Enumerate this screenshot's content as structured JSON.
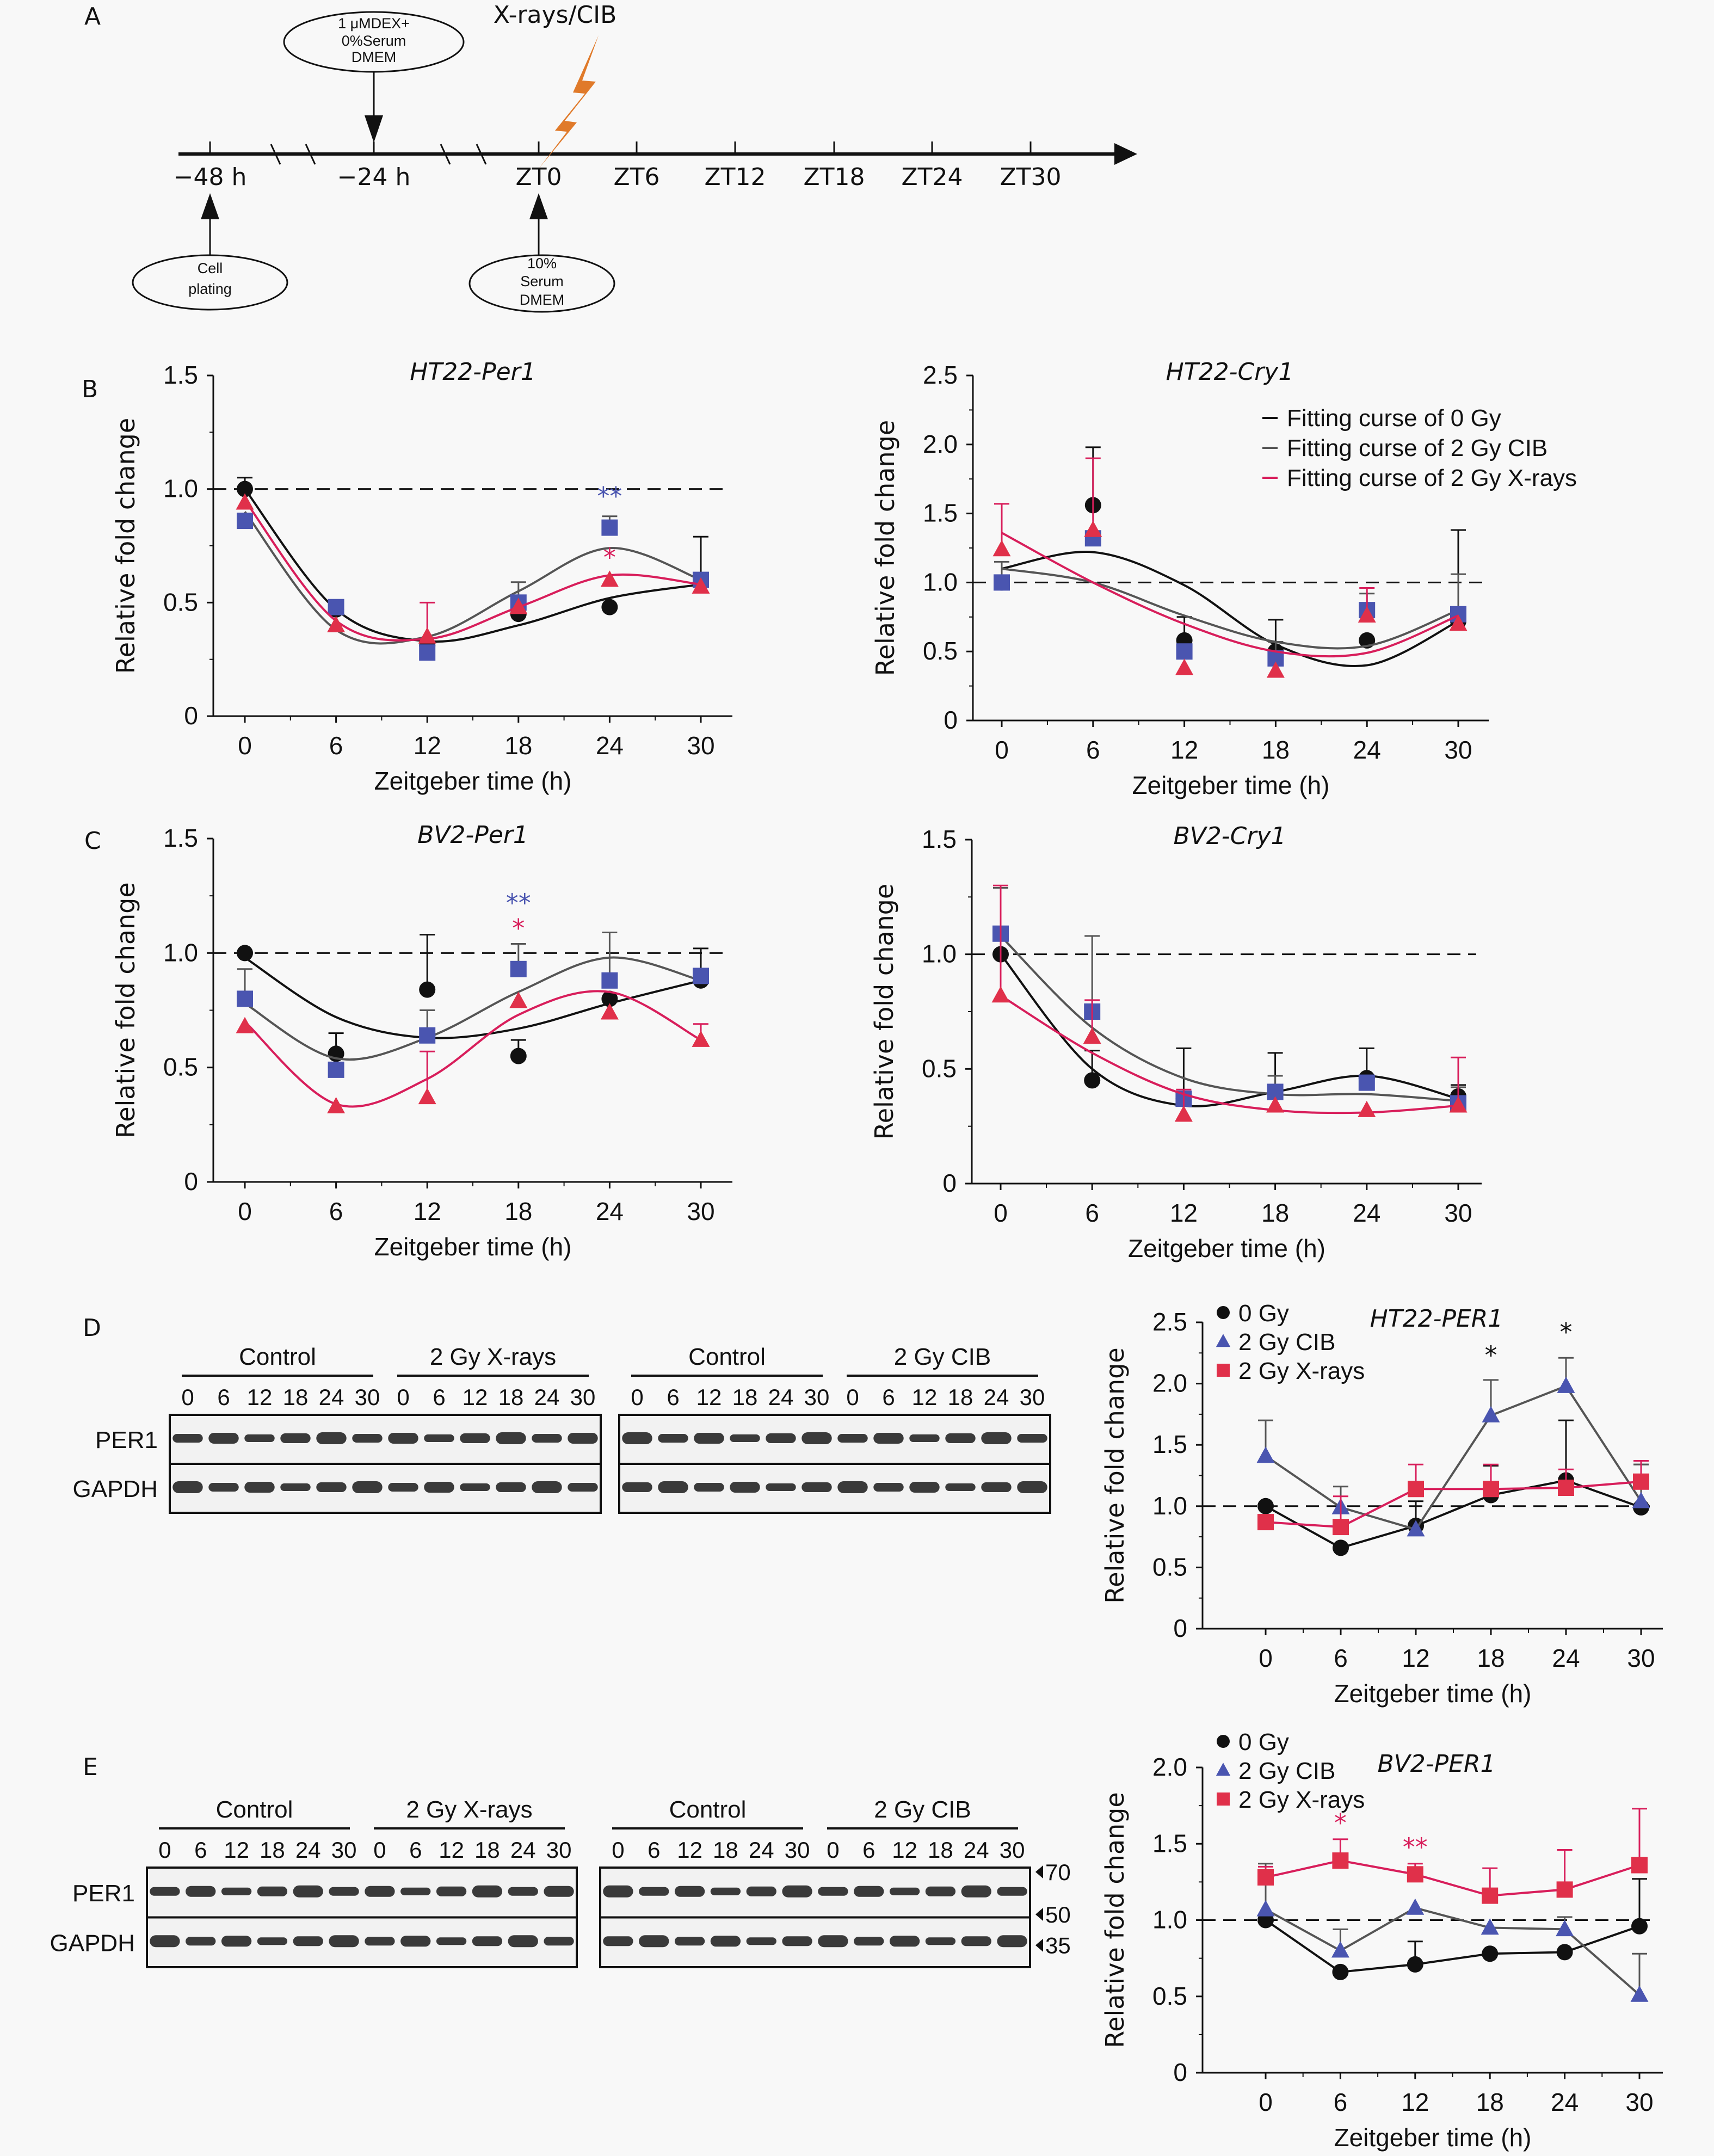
{
  "panel_labels": {
    "A": "A",
    "B": "B",
    "C": "C",
    "D": "D",
    "E": "E"
  },
  "timeline": {
    "irradiation_label": "X-rays/CIB",
    "ticks": [
      "−48 h",
      "−24 h",
      "ZT0",
      "ZT6",
      "ZT12",
      "ZT18",
      "ZT24",
      "ZT30"
    ],
    "callouts": {
      "dex": [
        "1 μMDEX+",
        "0%Serum",
        "DMEM"
      ],
      "plating": [
        "Cell",
        "plating"
      ],
      "serum": [
        "10%",
        "Serum",
        "DMEM"
      ]
    },
    "bolt_color": "#e07a2a"
  },
  "colors": {
    "gy0": "#111111",
    "cib": "#4a55b0",
    "cib_line": "#555555",
    "xray": "#e0304a",
    "xray_line": "#d81e5b"
  },
  "chart_data": [
    {
      "id": "B-left",
      "type": "scatter",
      "title": "HT22-Per1",
      "xlabel": "Zeitgeber time (h)",
      "ylabel": "Relative fold change",
      "x": [
        0,
        6,
        12,
        18,
        24,
        30
      ],
      "xticks": [
        "0",
        "6",
        "12",
        "18",
        "24",
        "30"
      ],
      "yticks": [
        "0",
        "0.5",
        "1.0",
        "1.5"
      ],
      "ylim": [
        0,
        1.5
      ],
      "reference_line": 1.0,
      "series": [
        {
          "name": "0 Gy",
          "marker": "circle",
          "values": [
            1.0,
            0.47,
            0.31,
            0.45,
            0.48,
            0.59
          ],
          "err": [
            0.05,
            0,
            0,
            0,
            0,
            0.2
          ],
          "fit": [
            1.0,
            0.47,
            0.33,
            0.4,
            0.52,
            0.58
          ]
        },
        {
          "name": "2 Gy CIB",
          "marker": "square",
          "values": [
            0.86,
            0.48,
            0.28,
            0.5,
            0.83,
            0.6
          ],
          "err": [
            0,
            0,
            0,
            0.09,
            0.05,
            0
          ],
          "fit": [
            0.9,
            0.38,
            0.35,
            0.55,
            0.74,
            0.6
          ]
        },
        {
          "name": "2 Gy X-rays",
          "marker": "triangle",
          "values": [
            0.94,
            0.4,
            0.35,
            0.48,
            0.6,
            0.57
          ],
          "err": [
            0,
            0,
            0.15,
            0,
            0,
            0
          ],
          "fit": [
            0.95,
            0.42,
            0.34,
            0.48,
            0.62,
            0.58
          ]
        }
      ],
      "annotations": [
        {
          "x": 24,
          "text": "**",
          "color": "#4a55b0",
          "y": 0.93
        },
        {
          "x": 24,
          "text": "*",
          "color": "#d81e5b",
          "y": 0.66
        }
      ]
    },
    {
      "id": "B-right",
      "type": "scatter",
      "title": "HT22-Cry1",
      "xlabel": "Zeitgeber time (h)",
      "ylabel": "Relative fold change",
      "x": [
        0,
        6,
        12,
        18,
        24,
        30
      ],
      "xticks": [
        "0",
        "6",
        "12",
        "18",
        "24",
        "30"
      ],
      "yticks": [
        "0",
        "0.5",
        "1.0",
        "1.5",
        "2.0",
        "2.5"
      ],
      "ylim": [
        0,
        2.5
      ],
      "reference_line": 1.0,
      "legend": [
        "Fitting curse of 0 Gy",
        "Fitting curse of 2 Gy CIB",
        "Fitting curse of 2 Gy X-rays"
      ],
      "legend_position": "top-right",
      "series": [
        {
          "name": "0 Gy",
          "marker": "circle",
          "values": [
            1.0,
            1.56,
            0.58,
            0.5,
            0.58,
            0.72
          ],
          "err": [
            0,
            0.42,
            0.17,
            0.23,
            0,
            0.66
          ],
          "fit": [
            1.1,
            1.22,
            0.98,
            0.55,
            0.4,
            0.72
          ]
        },
        {
          "name": "2 Gy CIB",
          "marker": "square",
          "values": [
            1.0,
            1.32,
            0.5,
            0.45,
            0.8,
            0.77
          ],
          "err": [
            0.15,
            0,
            0,
            0.12,
            0.12,
            0.29
          ],
          "fit": [
            1.1,
            1.0,
            0.76,
            0.57,
            0.54,
            0.8
          ]
        },
        {
          "name": "2 Gy X-rays",
          "marker": "triangle",
          "values": [
            1.24,
            1.38,
            0.38,
            0.36,
            0.76,
            0.7
          ],
          "err": [
            0.33,
            0.52,
            0,
            0,
            0.2,
            0
          ],
          "fit": [
            1.36,
            1.0,
            0.7,
            0.5,
            0.49,
            0.76
          ]
        }
      ]
    },
    {
      "id": "C-left",
      "type": "scatter",
      "title": "BV2-Per1",
      "xlabel": "Zeitgeber time (h)",
      "ylabel": "Relative fold change",
      "x": [
        0,
        6,
        12,
        18,
        24,
        30
      ],
      "xticks": [
        "0",
        "6",
        "12",
        "18",
        "24",
        "30"
      ],
      "yticks": [
        "0",
        "0.5",
        "1.0",
        "1.5"
      ],
      "ylim": [
        0,
        1.5
      ],
      "reference_line": 1.0,
      "series": [
        {
          "name": "0 Gy",
          "marker": "circle",
          "values": [
            1.0,
            0.56,
            0.84,
            0.55,
            0.8,
            0.88
          ],
          "err": [
            0,
            0.09,
            0.24,
            0.07,
            0,
            0.14
          ],
          "fit": [
            0.98,
            0.72,
            0.63,
            0.67,
            0.78,
            0.88
          ]
        },
        {
          "name": "2 Gy CIB",
          "marker": "square",
          "values": [
            0.8,
            0.49,
            0.64,
            0.93,
            0.88,
            0.9
          ],
          "err": [
            0.13,
            0,
            0.11,
            0.11,
            0.21,
            0
          ],
          "fit": [
            0.78,
            0.54,
            0.63,
            0.83,
            0.98,
            0.88
          ]
        },
        {
          "name": "2 Gy X-rays",
          "marker": "triangle",
          "values": [
            0.68,
            0.33,
            0.37,
            0.79,
            0.74,
            0.62
          ],
          "err": [
            0,
            0,
            0.2,
            0,
            0,
            0.07
          ],
          "fit": [
            0.7,
            0.34,
            0.45,
            0.73,
            0.83,
            0.62
          ]
        }
      ],
      "annotations": [
        {
          "x": 18,
          "text": "**",
          "color": "#4a55b0",
          "y": 1.18
        },
        {
          "x": 18,
          "text": "*",
          "color": "#d81e5b",
          "y": 1.07
        }
      ]
    },
    {
      "id": "C-right",
      "type": "scatter",
      "title": "BV2-Cry1",
      "xlabel": "Zeitgeber time (h)",
      "ylabel": "Relative fold change",
      "x": [
        0,
        6,
        12,
        18,
        24,
        30
      ],
      "xticks": [
        "0",
        "6",
        "12",
        "18",
        "24",
        "30"
      ],
      "yticks": [
        "0",
        "0.5",
        "1.0",
        "1.5"
      ],
      "ylim": [
        0,
        1.5
      ],
      "reference_line": 1.0,
      "series": [
        {
          "name": "0 Gy",
          "marker": "circle",
          "values": [
            1.0,
            0.45,
            0.37,
            0.4,
            0.46,
            0.38
          ],
          "err": [
            0,
            0.13,
            0.22,
            0.17,
            0.13,
            0.05
          ],
          "fit": [
            1.0,
            0.5,
            0.34,
            0.4,
            0.47,
            0.37
          ]
        },
        {
          "name": "2 Gy CIB",
          "marker": "square",
          "values": [
            1.09,
            0.75,
            0.37,
            0.4,
            0.44,
            0.35
          ],
          "err": [
            0.2,
            0.33,
            0,
            0.07,
            0,
            0.07
          ],
          "fit": [
            1.08,
            0.68,
            0.46,
            0.39,
            0.39,
            0.36
          ]
        },
        {
          "name": "2 Gy X-rays",
          "marker": "triangle",
          "values": [
            0.82,
            0.64,
            0.3,
            0.34,
            0.32,
            0.34
          ],
          "err": [
            0.48,
            0.16,
            0.11,
            0,
            0,
            0.21
          ],
          "fit": [
            0.82,
            0.57,
            0.39,
            0.32,
            0.31,
            0.34
          ]
        }
      ]
    },
    {
      "id": "D-right",
      "type": "line",
      "title": "HT22-PER1",
      "xlabel": "Zeitgeber time (h)",
      "ylabel": "Relative fold change",
      "x": [
        0,
        6,
        12,
        18,
        24,
        30
      ],
      "xticks": [
        "0",
        "6",
        "12",
        "18",
        "24",
        "30"
      ],
      "yticks": [
        "0",
        "0.5",
        "1.0",
        "1.5",
        "2.0",
        "2.5"
      ],
      "ylim": [
        0,
        2.5
      ],
      "xlim": [
        -5,
        32
      ],
      "reference_line": 1.0,
      "legend": [
        "0 Gy",
        "2 Gy CIB",
        "2 Gy X-rays"
      ],
      "legend_position": "top-left",
      "series": [
        {
          "name": "0 Gy",
          "marker": "circle",
          "values": [
            1.0,
            0.66,
            0.84,
            1.09,
            1.21,
            0.99
          ],
          "err": [
            0,
            0,
            0.2,
            0.24,
            0.49,
            0.35
          ]
        },
        {
          "name": "2 Gy CIB",
          "marker": "triangle",
          "values": [
            1.41,
            0.99,
            0.81,
            1.74,
            1.98,
            1.04
          ],
          "err": [
            0.29,
            0.17,
            0,
            0.29,
            0.23,
            0.3
          ]
        },
        {
          "name": "2 Gy X-rays",
          "marker": "square",
          "values": [
            0.87,
            0.83,
            1.14,
            1.14,
            1.15,
            1.2
          ],
          "err": [
            0,
            0.25,
            0.2,
            0.2,
            0.15,
            0.17
          ]
        }
      ],
      "annotations": [
        {
          "x": 18,
          "text": "*",
          "color": "#111111",
          "y": 2.16
        },
        {
          "x": 24,
          "text": "*",
          "color": "#111111",
          "y": 2.35
        }
      ]
    },
    {
      "id": "E-right",
      "type": "line",
      "title": "BV2-PER1",
      "xlabel": "Zeitgeber time (h)",
      "ylabel": "Relative fold change",
      "x": [
        0,
        6,
        12,
        18,
        24,
        30
      ],
      "xticks": [
        "0",
        "6",
        "12",
        "18",
        "24",
        "30"
      ],
      "yticks": [
        "0",
        "0.5",
        "1.0",
        "1.5",
        "2.0"
      ],
      "ylim": [
        0,
        2.0
      ],
      "xlim": [
        -5,
        32
      ],
      "reference_line": 1.0,
      "legend": [
        "0 Gy",
        "2 Gy CIB",
        "2 Gy X-rays"
      ],
      "legend_position": "top-left",
      "series": [
        {
          "name": "0 Gy",
          "marker": "circle",
          "values": [
            1.0,
            0.66,
            0.71,
            0.78,
            0.79,
            0.96
          ],
          "err": [
            0,
            0,
            0.15,
            0,
            0,
            0.31
          ]
        },
        {
          "name": "2 Gy CIB",
          "marker": "triangle",
          "values": [
            1.07,
            0.8,
            1.08,
            0.95,
            0.94,
            0.51
          ],
          "err": [
            0.3,
            0.14,
            0,
            0,
            0.08,
            0.27
          ]
        },
        {
          "name": "2 Gy X-rays",
          "marker": "square",
          "values": [
            1.28,
            1.39,
            1.3,
            1.16,
            1.2,
            1.36
          ],
          "err": [
            0.07,
            0.14,
            0.07,
            0.18,
            0.26,
            0.37
          ]
        }
      ],
      "annotations": [
        {
          "x": 6,
          "text": "*",
          "color": "#d81e5b",
          "y": 1.58
        },
        {
          "x": 12,
          "text": "**",
          "color": "#d81e5b",
          "y": 1.42
        }
      ]
    }
  ],
  "blots": {
    "D": {
      "rows": [
        "PER1",
        "GAPDH"
      ],
      "groups_left": [
        "Control",
        "2 Gy X-rays"
      ],
      "groups_right": [
        "Control",
        "2 Gy CIB"
      ],
      "lanes": [
        "0",
        "6",
        "12",
        "18",
        "24",
        "30"
      ]
    },
    "E": {
      "rows": [
        "PER1",
        "GAPDH"
      ],
      "groups_left": [
        "Control",
        "2 Gy X-rays"
      ],
      "groups_right": [
        "Control",
        "2 Gy CIB"
      ],
      "lanes": [
        "0",
        "6",
        "12",
        "18",
        "24",
        "30"
      ],
      "markers": [
        "70",
        "50",
        "35"
      ]
    }
  }
}
